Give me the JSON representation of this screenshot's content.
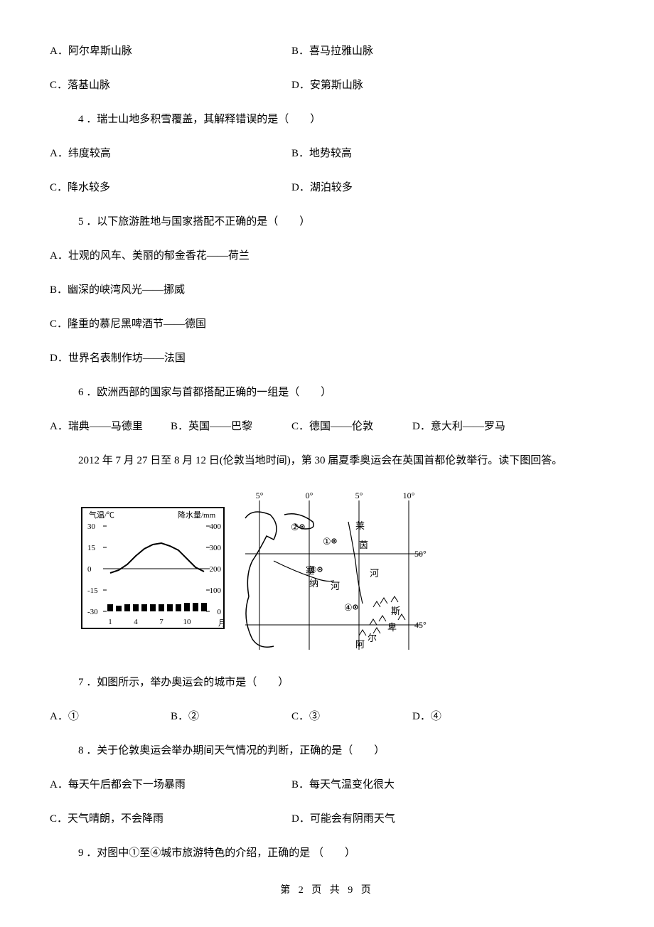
{
  "q_pre_options": {
    "a": "A．阿尔卑斯山脉",
    "b": "B．喜马拉雅山脉",
    "c": "C．落基山脉",
    "d": "D．安第斯山脉"
  },
  "q4": {
    "text": "4 ．瑞士山地多积雪覆盖，其解释错误的是（　　）",
    "a": "A．纬度较高",
    "b": "B．地势较高",
    "c": "C．降水较多",
    "d": "D．湖泊较多"
  },
  "q5": {
    "text": "5 ．以下旅游胜地与国家搭配不正确的是（　　）",
    "a": "A．壮观的风车、美丽的郁金香花——荷兰",
    "b": "B．幽深的峡湾风光——挪威",
    "c": "C．隆重的慕尼黑啤酒节——德国",
    "d": "D．世界名表制作坊——法国"
  },
  "q6": {
    "text": "6 ．欧洲西部的国家与首都搭配正确的一组是（　　）",
    "a": "A．瑞典——马德里",
    "b": "B．英国——巴黎",
    "c": "C．德国——伦敦",
    "d": "D．意大利——罗马"
  },
  "passage": "2012 年 7 月 27 日至 8 月 12 日(伦敦当地时间)，第 30 届夏季奥运会在英国首都伦敦举行。读下图回答。",
  "q7": {
    "text": "7 ．如图所示，举办奥运会的城市是（　　）",
    "a": "A．①",
    "b": "B．②",
    "c": "C．③",
    "d": "D．④"
  },
  "q8": {
    "text": "8 ．关于伦敦奥运会举办期间天气情况的判断，正确的是（　　）",
    "a": "A．每天午后都会下一场暴雨",
    "b": "B．每天气温变化很大",
    "c": "C．天气晴朗，不会降雨",
    "d": "D．可能会有阴雨天气"
  },
  "q9": {
    "text": "9 ．对图中①至④城市旅游特色的介绍，正确的是 （　　）"
  },
  "footer": "第 2 页 共 9 页",
  "chart": {
    "labels": {
      "temp_axis": "气温/℃",
      "precip_axis": "降水量/mm",
      "month_axis": "月"
    },
    "temp_ticks": [
      "30",
      "15",
      "0",
      "-15",
      "-30"
    ],
    "precip_ticks": [
      "400",
      "300",
      "200",
      "100",
      "0"
    ],
    "month_ticks": [
      "1",
      "4",
      "7",
      "10"
    ],
    "temp_line_y": [
      33,
      31,
      27,
      21,
      16,
      13,
      12,
      14,
      17,
      23,
      29,
      32
    ],
    "precip_bar_h": [
      5,
      4,
      5,
      5,
      5,
      5,
      5,
      5,
      5,
      6,
      6,
      6
    ]
  },
  "map": {
    "lon_labels": [
      "5°",
      "0°",
      "5°",
      "10°"
    ],
    "lat_labels": [
      "50°",
      "45°"
    ],
    "text": {
      "lai": "莱",
      "yin": "茵",
      "he1": "河",
      "sai": "塞",
      "na": "纳",
      "he2": "河",
      "si": "斯",
      "bei": "卑",
      "a": "阿",
      "er": "尔"
    },
    "markers": [
      "①",
      "②",
      "③",
      "④"
    ]
  }
}
